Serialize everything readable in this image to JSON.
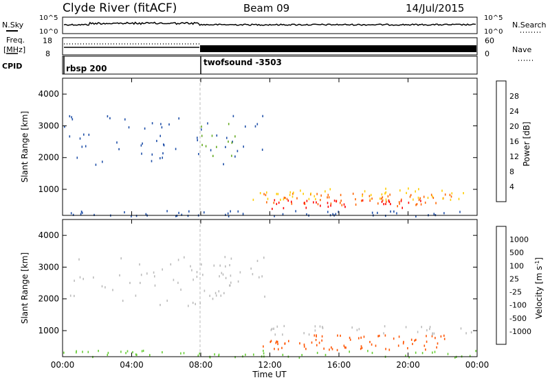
{
  "header": {
    "station": "Clyde River (fitACF)",
    "beam": "Beam 09",
    "date": "14/Jul/2015"
  },
  "top_panels": {
    "nsky_label": "N.Sky",
    "nsky_ticks": [
      "10^5",
      "10^0"
    ],
    "nsearch_label": "N.Search",
    "nsearch_ticks": [
      "10^5",
      "10^0"
    ],
    "freq_label_1": "Freq.",
    "freq_label_2": "[MHz]",
    "freq_ticks": [
      "18",
      "8"
    ],
    "nave_label": "Nave",
    "nave_ticks": [
      "60",
      "0"
    ],
    "cpid_label": "CPID",
    "cpid_segments": [
      {
        "name": "rbsp 200",
        "start_hour": 0
      },
      {
        "name": "twofsound -3503",
        "start_hour": 8
      }
    ]
  },
  "chart_data": [
    {
      "type": "heatmap",
      "title": "",
      "xlabel": "Time UT",
      "ylabel": "Slant Range [km]",
      "x_ticks": [
        "00:00",
        "04:00",
        "08:00",
        "12:00",
        "16:00",
        "20:00",
        "00:00"
      ],
      "xlim_hours": [
        0,
        24
      ],
      "y_ticks": [
        1000,
        2000,
        3000,
        4000
      ],
      "ylim": [
        180,
        4500
      ],
      "colorbar": {
        "label": "Power [dB]",
        "ticks": [
          "28",
          "24",
          "20",
          "16",
          "12",
          "8",
          "4"
        ],
        "colors": [
          "#ff0000",
          "#ff6600",
          "#ff9900",
          "#ffcc00",
          "#66aa22",
          "#2e8b57",
          "#1f4fa8",
          "#0000ff"
        ]
      },
      "scatter_regions": [
        {
          "t0": 0,
          "t1": 12,
          "r0": 1800,
          "r1": 3400,
          "color_index": 6,
          "density": 0.12
        },
        {
          "t0": 8,
          "t1": 10,
          "r0": 2000,
          "r1": 3200,
          "color_index": 4,
          "density": 0.2
        },
        {
          "t0": 11.5,
          "t1": 22.5,
          "r0": 500,
          "r1": 900,
          "color_index": 1,
          "density": 0.55
        },
        {
          "t0": 12,
          "t1": 21,
          "r0": 420,
          "r1": 700,
          "color_index": 0,
          "density": 0.5
        },
        {
          "t0": 11,
          "t1": 24,
          "r0": 700,
          "r1": 1100,
          "color_index": 3,
          "density": 0.35
        },
        {
          "t0": 0,
          "t1": 24,
          "r0": 180,
          "r1": 350,
          "color_index": 6,
          "density": 0.5
        }
      ]
    },
    {
      "type": "heatmap",
      "title": "",
      "xlabel": "Time UT",
      "ylabel": "Slant Range [km]",
      "x_ticks": [
        "00:00",
        "04:00",
        "08:00",
        "12:00",
        "16:00",
        "20:00",
        "00:00"
      ],
      "xlim_hours": [
        0,
        24
      ],
      "y_ticks": [
        1000,
        2000,
        3000,
        4000
      ],
      "ylim": [
        180,
        4500
      ],
      "colorbar": {
        "label": "Velocity [m s^-1]",
        "ticks": [
          "1000",
          "500",
          "100",
          "25",
          "-25",
          "-100",
          "-500",
          "-1000"
        ],
        "colors": [
          "#1f3fb0",
          "#2e6fd0",
          "#3a8a5a",
          "#66cc33",
          "#bbbbbb",
          "#ffcc00",
          "#ff9900",
          "#ff5500",
          "#ff0000"
        ]
      },
      "scatter_regions": [
        {
          "t0": 0,
          "t1": 12,
          "r0": 1800,
          "r1": 3400,
          "color_index": 4,
          "density": 0.12
        },
        {
          "t0": 8,
          "t1": 10,
          "r0": 2000,
          "r1": 3200,
          "color_index": 4,
          "density": 0.25
        },
        {
          "t0": 11.5,
          "t1": 22.5,
          "r0": 420,
          "r1": 900,
          "color_index": 7,
          "density": 0.55
        },
        {
          "t0": 12,
          "t1": 24,
          "r0": 900,
          "r1": 1200,
          "color_index": 4,
          "density": 0.35
        },
        {
          "t0": 0,
          "t1": 24,
          "r0": 180,
          "r1": 400,
          "color_index": 3,
          "density": 0.45
        }
      ]
    }
  ]
}
